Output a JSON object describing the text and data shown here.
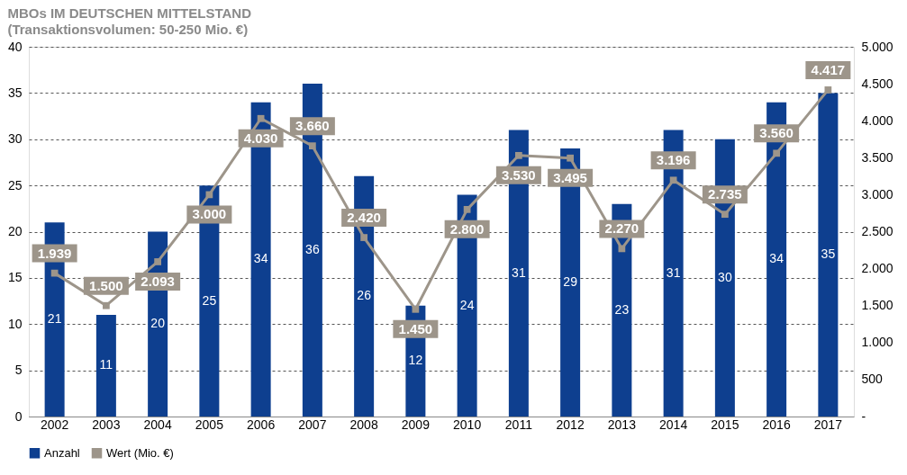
{
  "chart_data": {
    "type": "bar",
    "title": "MBOs IM DEUTSCHEN MITTELSTAND",
    "subtitle": "(Transaktionsvolumen: 50-250 Mio. €)",
    "categories": [
      "2002",
      "2003",
      "2004",
      "2005",
      "2006",
      "2007",
      "2008",
      "2009",
      "2010",
      "2011",
      "2012",
      "2013",
      "2014",
      "2015",
      "2016",
      "2017"
    ],
    "series": [
      {
        "name": "Anzahl",
        "color": "#0e3f8f",
        "values": [
          21,
          11,
          20,
          25,
          34,
          36,
          26,
          12,
          24,
          31,
          29,
          23,
          31,
          30,
          34,
          35
        ],
        "value_labels": [
          "21",
          "11",
          "20",
          "25",
          "34",
          "36",
          "26",
          "12",
          "24",
          "31",
          "29",
          "23",
          "31",
          "30",
          "34",
          "35"
        ]
      },
      {
        "name": "Wert (Mio. €)",
        "type": "line",
        "axis": "y2",
        "marker": "square",
        "color": "#9d958a",
        "values": [
          1939,
          1500,
          2093,
          3000,
          4030,
          3660,
          2420,
          1450,
          2800,
          3530,
          3495,
          2270,
          3196,
          2735,
          3560,
          4417
        ],
        "value_labels": [
          "1.939",
          "1.500",
          "2.093",
          "3.000",
          "4.030",
          "3.660",
          "2.420",
          "1.450",
          "2.800",
          "3.530",
          "3.495",
          "2.270",
          "3.196",
          "2.735",
          "3.560",
          "4.417"
        ]
      }
    ],
    "ylim": [
      0,
      40
    ],
    "yticks": [
      0,
      5,
      10,
      15,
      20,
      25,
      30,
      35,
      40
    ],
    "y2lim": [
      0,
      5000
    ],
    "y2ticks": [
      {
        "value": 0,
        "label": "-"
      },
      500,
      {
        "value": 1000,
        "label": "1.000"
      },
      {
        "value": 1500,
        "label": "1.500"
      },
      {
        "value": 2000,
        "label": "2.000"
      },
      {
        "value": 2500,
        "label": "2.500"
      },
      {
        "value": 3000,
        "label": "3.000"
      },
      {
        "value": 3500,
        "label": "3.500"
      },
      {
        "value": 4000,
        "label": "4.000"
      },
      {
        "value": 4500,
        "label": "4.500"
      },
      {
        "value": 5000,
        "label": "5.000"
      }
    ],
    "grid": "y",
    "legend": "bottom"
  }
}
